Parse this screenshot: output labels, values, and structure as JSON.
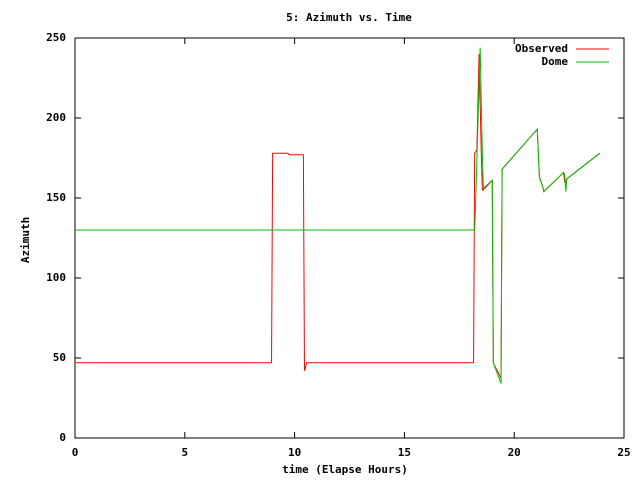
{
  "chart_data": {
    "type": "line",
    "title": "5: Azimuth vs. Time",
    "x_label": "time (Elapse Hours)",
    "y_label": "Azimuth",
    "xlim": [
      0,
      25
    ],
    "xticks": [
      0,
      5,
      10,
      15,
      20,
      25
    ],
    "ylim": [
      0,
      250
    ],
    "yticks": [
      0,
      50,
      100,
      150,
      200,
      250
    ],
    "grid": false,
    "legend": "top-right",
    "series": [
      {
        "name": "Observed",
        "color": "#ff0000",
        "x": [
          0,
          8.95,
          9.0,
          9.7,
          9.75,
          10.4,
          10.45,
          10.55,
          18.15,
          18.2,
          18.3,
          18.4,
          18.5,
          18.55,
          18.6,
          19.0,
          19.05,
          19.3,
          19.4,
          19.45,
          21.05,
          21.15,
          21.3,
          21.35,
          22.25,
          22.3,
          22.35,
          22.4,
          23.9
        ],
        "values": [
          47,
          47,
          178,
          178,
          177,
          177,
          42,
          47,
          47,
          178,
          180,
          240,
          178,
          155,
          156,
          161,
          47,
          40,
          37,
          168,
          193,
          163,
          157,
          154,
          166,
          160,
          160,
          162,
          178
        ]
      },
      {
        "name": "Dome",
        "color": "#00c000",
        "x": [
          0,
          18.2,
          18.25,
          18.45,
          18.55,
          18.6,
          19.0,
          19.05,
          19.4,
          19.45,
          21.05,
          21.15,
          21.3,
          21.35,
          22.25,
          22.3,
          22.35,
          22.4,
          23.9
        ],
        "values": [
          130,
          130,
          150,
          244,
          178,
          155,
          161,
          47,
          34,
          168,
          193,
          163,
          157,
          154,
          166,
          165,
          154,
          162,
          178
        ]
      }
    ]
  }
}
